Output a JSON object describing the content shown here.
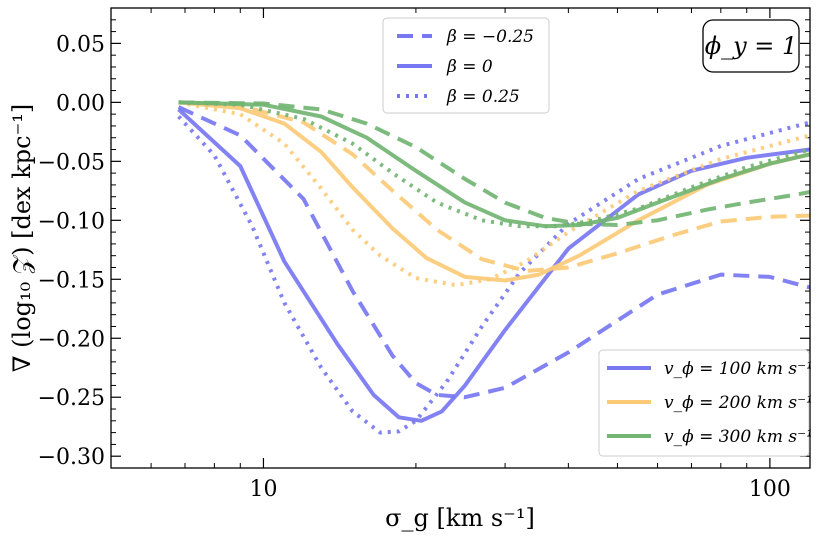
{
  "chart_data": {
    "type": "line",
    "x_scale": "log",
    "xlim": [
      5,
      120
    ],
    "ylim": [
      -0.31,
      0.08
    ],
    "xlabel": "σ_g [km s⁻¹]",
    "ylabel": "∇ (log₁₀ 𝒵) [dex kpc⁻¹]",
    "x_ticks": [
      {
        "value": 10,
        "label": "10"
      },
      {
        "value": 100,
        "label": "100"
      }
    ],
    "y_ticks": [
      {
        "value": 0.05,
        "label": "0.05"
      },
      {
        "value": 0.0,
        "label": "0.00"
      },
      {
        "value": -0.05,
        "label": "−0.05"
      },
      {
        "value": -0.1,
        "label": "−0.10"
      },
      {
        "value": -0.15,
        "label": "−0.15"
      },
      {
        "value": -0.2,
        "label": "−0.20"
      },
      {
        "value": -0.25,
        "label": "−0.25"
      },
      {
        "value": -0.3,
        "label": "−0.30"
      }
    ],
    "annotation": "ϕ_y = 1",
    "beta_legend": [
      {
        "label": "β = −0.25",
        "style": "dashed"
      },
      {
        "label": "β = 0",
        "style": "solid"
      },
      {
        "label": "β = 0.25",
        "style": "dotted"
      }
    ],
    "vphi_legend": [
      {
        "label": "v_ϕ = 100 km s⁻¹",
        "color": "#7777f2"
      },
      {
        "label": "v_ϕ = 200 km s⁻¹",
        "color": "#fcca77"
      },
      {
        "label": "v_ϕ = 300 km s⁻¹",
        "color": "#72b472"
      }
    ],
    "series": [
      {
        "name": "v100 beta=-0.25",
        "color": "#7777f2",
        "style": "dashed",
        "x": [
          6.8,
          9.0,
          12.0,
          15.0,
          18.0,
          20.0,
          22.0,
          25.0,
          30.0,
          40.0,
          60.0,
          80.0,
          100.0,
          120.0
        ],
        "y": [
          -0.004,
          -0.028,
          -0.082,
          -0.16,
          -0.215,
          -0.238,
          -0.248,
          -0.25,
          -0.242,
          -0.212,
          -0.163,
          -0.146,
          -0.148,
          -0.157
        ]
      },
      {
        "name": "v100 beta=0",
        "color": "#7777f2",
        "style": "solid",
        "x": [
          6.8,
          9.0,
          11.0,
          14.0,
          16.5,
          18.5,
          20.5,
          22.5,
          25.0,
          30.0,
          40.0,
          55.0,
          70.0,
          90.0,
          120.0
        ],
        "y": [
          -0.006,
          -0.054,
          -0.135,
          -0.205,
          -0.248,
          -0.267,
          -0.27,
          -0.262,
          -0.24,
          -0.193,
          -0.124,
          -0.078,
          -0.058,
          -0.047,
          -0.04
        ]
      },
      {
        "name": "v100 beta=0.25",
        "color": "#7777f2",
        "style": "dotted",
        "x": [
          6.8,
          8.0,
          9.5,
          11.0,
          13.0,
          15.0,
          17.0,
          18.5,
          20.0,
          23.0,
          27.0,
          32.0,
          40.0,
          55.0,
          80.0,
          120.0
        ],
        "y": [
          -0.012,
          -0.045,
          -0.105,
          -0.17,
          -0.225,
          -0.262,
          -0.28,
          -0.279,
          -0.27,
          -0.237,
          -0.19,
          -0.145,
          -0.103,
          -0.065,
          -0.037,
          -0.017
        ]
      },
      {
        "name": "v200 beta=-0.25",
        "color": "#fcca77",
        "style": "dashed",
        "x": [
          6.8,
          9.0,
          12.0,
          15.0,
          18.0,
          22.0,
          27.0,
          33.0,
          40.0,
          50.0,
          65.0,
          80.0,
          100.0,
          120.0
        ],
        "y": [
          0.0,
          -0.003,
          -0.017,
          -0.044,
          -0.075,
          -0.108,
          -0.133,
          -0.143,
          -0.14,
          -0.128,
          -0.112,
          -0.101,
          -0.097,
          -0.096
        ]
      },
      {
        "name": "v200 beta=0",
        "color": "#fcca77",
        "style": "solid",
        "x": [
          6.8,
          9.0,
          11.0,
          13.0,
          15.0,
          18.0,
          21.0,
          25.0,
          30.0,
          35.0,
          42.0,
          55.0,
          75.0,
          100.0,
          120.0
        ],
        "y": [
          0.0,
          -0.005,
          -0.018,
          -0.042,
          -0.072,
          -0.107,
          -0.132,
          -0.148,
          -0.151,
          -0.146,
          -0.13,
          -0.1,
          -0.07,
          -0.052,
          -0.044
        ]
      },
      {
        "name": "v200 beta=0.25",
        "color": "#fcca77",
        "style": "dotted",
        "x": [
          6.8,
          9.0,
          11.0,
          13.0,
          15.0,
          17.0,
          20.0,
          24.0,
          28.0,
          33.0,
          40.0,
          55.0,
          80.0,
          120.0
        ],
        "y": [
          0.0,
          -0.01,
          -0.035,
          -0.073,
          -0.108,
          -0.13,
          -0.149,
          -0.155,
          -0.15,
          -0.135,
          -0.11,
          -0.075,
          -0.048,
          -0.028
        ]
      },
      {
        "name": "v300 beta=-0.25",
        "color": "#72b472",
        "style": "dashed",
        "x": [
          6.8,
          10.0,
          13.0,
          16.0,
          20.0,
          25.0,
          30.0,
          36.0,
          42.0,
          50.0,
          60.0,
          75.0,
          90.0,
          110.0,
          120.0
        ],
        "y": [
          0.0,
          -0.001,
          -0.006,
          -0.018,
          -0.038,
          -0.065,
          -0.085,
          -0.098,
          -0.103,
          -0.104,
          -0.1,
          -0.091,
          -0.085,
          -0.079,
          -0.076
        ]
      },
      {
        "name": "v300 beta=0",
        "color": "#72b472",
        "style": "solid",
        "x": [
          6.8,
          10.0,
          13.0,
          16.0,
          20.0,
          25.0,
          30.0,
          36.0,
          42.0,
          50.0,
          60.0,
          80.0,
          100.0,
          120.0
        ],
        "y": [
          0.0,
          -0.002,
          -0.012,
          -0.03,
          -0.058,
          -0.085,
          -0.1,
          -0.105,
          -0.104,
          -0.098,
          -0.085,
          -0.065,
          -0.052,
          -0.044
        ]
      },
      {
        "name": "v300 beta=0.25",
        "color": "#72b472",
        "style": "dotted",
        "x": [
          6.8,
          9.0,
          12.0,
          15.0,
          18.0,
          22.0,
          27.0,
          32.0,
          38.0,
          45.0,
          55.0,
          70.0,
          90.0,
          120.0
        ],
        "y": [
          0.0,
          -0.002,
          -0.014,
          -0.035,
          -0.06,
          -0.085,
          -0.1,
          -0.105,
          -0.105,
          -0.1,
          -0.09,
          -0.072,
          -0.055,
          -0.04
        ]
      }
    ]
  }
}
